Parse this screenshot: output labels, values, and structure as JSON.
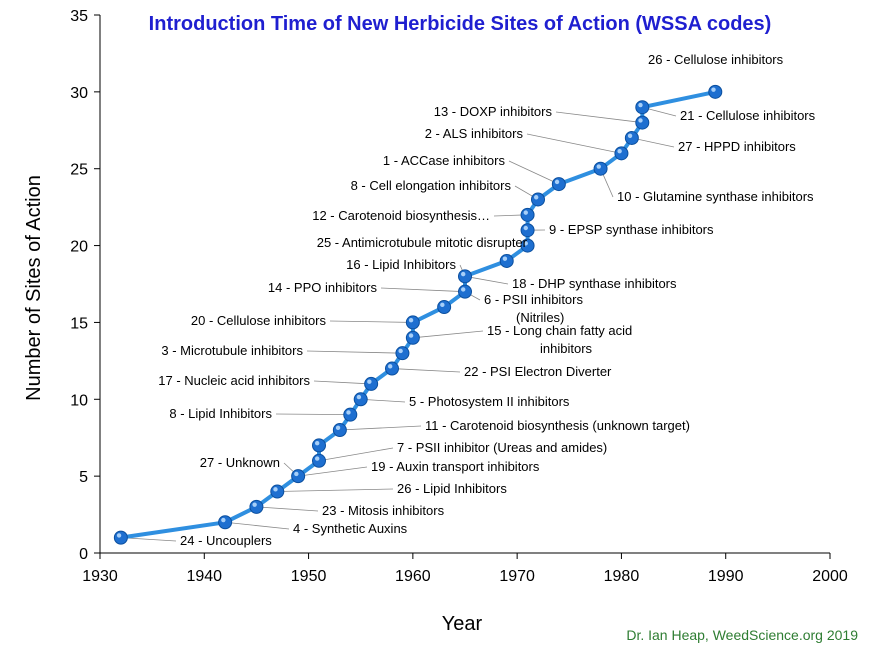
{
  "chart_data": {
    "type": "line",
    "title": "Introduction Time of New Herbicide Sites of Action (WSSA codes)",
    "xlabel": "Year",
    "ylabel": "Number of Sites of Action",
    "xlim": [
      1930,
      2000
    ],
    "ylim": [
      0,
      35
    ],
    "x_ticks": [
      1930,
      1940,
      1950,
      1960,
      1970,
      1980,
      1990,
      2000
    ],
    "y_ticks": [
      0,
      5,
      10,
      15,
      20,
      25,
      30,
      35
    ],
    "grid": false,
    "line_color": "#2f8fe0",
    "marker_color": "#1e6fd0",
    "x": [
      1932,
      1942,
      1945,
      1947,
      1949,
      1951,
      1951,
      1953,
      1954,
      1955,
      1956,
      1958,
      1959,
      1960,
      1960,
      1963,
      1965,
      1965,
      1969,
      1971,
      1971,
      1971,
      1972,
      1974,
      1978,
      1980,
      1981,
      1982,
      1982,
      1989
    ],
    "y": [
      1,
      2,
      3,
      4,
      5,
      6,
      7,
      8,
      9,
      10,
      11,
      12,
      13,
      14,
      15,
      16,
      17,
      18,
      19,
      20,
      21,
      22,
      23,
      24,
      25,
      26,
      27,
      28,
      29,
      30
    ],
    "annotations": [
      "24 -  Uncouplers",
      "4 -  Synthetic Auxins",
      "23 -  Mitosis inhibitors",
      "26 -  Lipid Inhibitors",
      "19 -  Auxin transport inhibitors",
      "27 -  Unknown",
      "7 -  PSII inhibitor (Ureas and amides)",
      "11 -  Carotenoid biosynthesis (unknown target)",
      "8 -  Lipid Inhibitors",
      "5 -  Photosystem II inhibitors",
      "17 -  Nucleic acid inhibitors",
      "22 -  PSI Electron Diverter",
      "3 -  Microtubule inhibitors",
      "15 -  Long chain fatty acid",
      "inhibitors",
      "20 -  Cellulose inhibitors",
      "6 -  PSII inhibitors",
      "(Nitriles)",
      "14 -  PPO inhibitors",
      "18 -  DHP synthase inhibitors",
      "16 -  Lipid Inhibitors",
      "25 -  Antimicrotubule mitotic disrupter",
      "9 -  EPSP synthase inhibitors",
      "12 -  Carotenoid biosynthesis…",
      "8 -  Cell elongation inhibitors",
      "10 -  Glutamine synthase inhibitors",
      "1 -  ACCase inhibitors",
      "2 -  ALS inhibitors",
      "27 -  HPPD inhibitors",
      "13 -  DOXP inhibitors",
      "21 -  Cellulose inhibitors",
      "26 -  Cellulose inhibitors"
    ]
  },
  "credit": "Dr. Ian Heap, WeedScience.org  2019"
}
